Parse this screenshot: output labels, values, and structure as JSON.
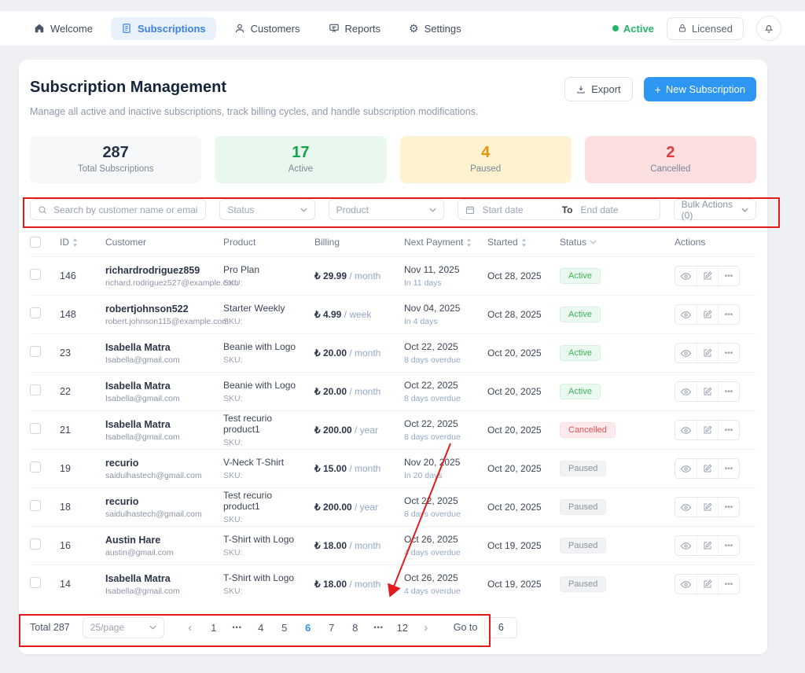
{
  "nav": {
    "items": [
      {
        "label": "Welcome",
        "icon": "home-icon"
      },
      {
        "label": "Subscriptions",
        "icon": "document-icon",
        "active": true
      },
      {
        "label": "Customers",
        "icon": "person-icon"
      },
      {
        "label": "Reports",
        "icon": "report-icon"
      },
      {
        "label": "Settings",
        "icon": "gear-icon"
      }
    ],
    "license_status": "Active",
    "licensed_label": "Licensed"
  },
  "header": {
    "title": "Subscription Management",
    "subtitle": "Manage all active and inactive subscriptions, track billing cycles, and handle subscription modifications.",
    "export_label": "Export",
    "new_subscription_label": "New Subscription"
  },
  "stats": [
    {
      "value": "287",
      "label": "Total Subscriptions",
      "color": "#253246",
      "bg": "#f7f8fa"
    },
    {
      "value": "17",
      "label": "Active",
      "color": "#16a34a",
      "bg": "#e9f8ee"
    },
    {
      "value": "4",
      "label": "Paused",
      "color": "#ea940b",
      "bg": "#fdf3d0"
    },
    {
      "value": "2",
      "label": "Cancelled",
      "color": "#e03c3c",
      "bg": "#fbdfe0"
    }
  ],
  "filters": {
    "search_placeholder": "Search by customer name or email...",
    "status_placeholder": "Status",
    "product_placeholder": "Product",
    "start_date_placeholder": "Start date",
    "date_separator": "To",
    "end_date_placeholder": "End date",
    "bulk_actions_label": "Bulk Actions (0)"
  },
  "table": {
    "columns": [
      "ID",
      "Customer",
      "Product",
      "Billing",
      "Next Payment",
      "Started",
      "Status",
      "Actions"
    ],
    "rows": [
      {
        "id": "146",
        "customer": "richardrodriguez859",
        "email": "richard.rodriguez527@example.com",
        "product": "Pro Plan",
        "sku": "SKU:",
        "price": "₺ 29.99",
        "period": "/ month",
        "next_payment": "Nov 11, 2025",
        "next_note": "In 11 days",
        "started": "Oct 28, 2025",
        "status": "Active"
      },
      {
        "id": "148",
        "customer": "robertjohnson522",
        "email": "robert.johnson115@example.com",
        "product": "Starter Weekly",
        "sku": "SKU:",
        "price": "₺ 4.99",
        "period": "/ week",
        "next_payment": "Nov 04, 2025",
        "next_note": "In 4 days",
        "started": "Oct 28, 2025",
        "status": "Active"
      },
      {
        "id": "23",
        "customer": "Isabella Matra",
        "email": "Isabella@gmail.com",
        "product": "Beanie with Logo",
        "sku": "SKU:",
        "price": "₺ 20.00",
        "period": "/ month",
        "next_payment": "Oct 22, 2025",
        "next_note": "8 days overdue",
        "started": "Oct 20, 2025",
        "status": "Active"
      },
      {
        "id": "22",
        "customer": "Isabella Matra",
        "email": "Isabella@gmail.com",
        "product": "Beanie with Logo",
        "sku": "SKU:",
        "price": "₺ 20.00",
        "period": "/ month",
        "next_payment": "Oct 22, 2025",
        "next_note": "8 days overdue",
        "started": "Oct 20, 2025",
        "status": "Active"
      },
      {
        "id": "21",
        "customer": "Isabella Matra",
        "email": "Isabella@gmail.com",
        "product": "Test recurio product1",
        "sku": "SKU:",
        "price": "₺ 200.00",
        "period": "/ year",
        "next_payment": "Oct 22, 2025",
        "next_note": "8 days overdue",
        "started": "Oct 20, 2025",
        "status": "Cancelled"
      },
      {
        "id": "19",
        "customer": "recurio",
        "email": "saidulhastech@gmail.com",
        "product": "V-Neck T-Shirt",
        "sku": "SKU:",
        "price": "₺ 15.00",
        "period": "/ month",
        "next_payment": "Nov 20, 2025",
        "next_note": "In 20 days",
        "started": "Oct 20, 2025",
        "status": "Paused"
      },
      {
        "id": "18",
        "customer": "recurio",
        "email": "saidulhastech@gmail.com",
        "product": "Test recurio product1",
        "sku": "SKU:",
        "price": "₺ 200.00",
        "period": "/ year",
        "next_payment": "Oct 22, 2025",
        "next_note": "8 days overdue",
        "started": "Oct 20, 2025",
        "status": "Paused"
      },
      {
        "id": "16",
        "customer": "Austin Hare",
        "email": "austin@gmail.com",
        "product": "T-Shirt with Logo",
        "sku": "SKU:",
        "price": "₺ 18.00",
        "period": "/ month",
        "next_payment": "Oct 26, 2025",
        "next_note": "4 days overdue",
        "started": "Oct 19, 2025",
        "status": "Paused"
      },
      {
        "id": "14",
        "customer": "Isabella Matra",
        "email": "Isabella@gmail.com",
        "product": "T-Shirt with Logo",
        "sku": "SKU:",
        "price": "₺ 18.00",
        "period": "/ month",
        "next_payment": "Oct 26, 2025",
        "next_note": "4 days overdue",
        "started": "Oct 19, 2025",
        "status": "Paused"
      }
    ]
  },
  "pagination": {
    "total_label": "Total 287",
    "per_page": "25/page",
    "pages": [
      "1",
      "•••",
      "4",
      "5",
      "6",
      "7",
      "8",
      "•••",
      "12"
    ],
    "current": "6",
    "goto_label": "Go to",
    "goto_value": "6"
  },
  "annotations": {
    "highlight_color": "#e11b1b"
  }
}
